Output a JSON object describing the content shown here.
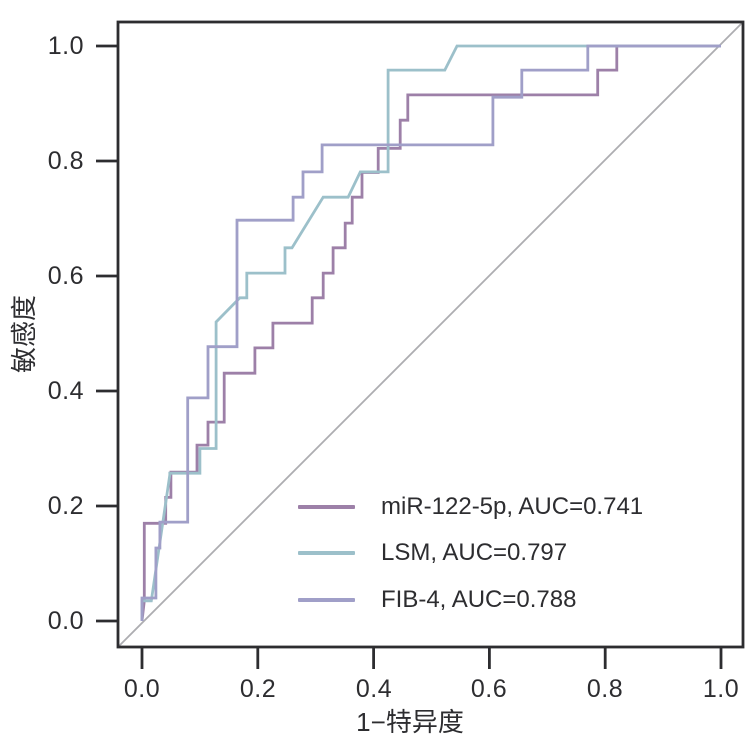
{
  "axes": {
    "x_label": "1−特异度",
    "y_label": "敏感度",
    "x_ticks": [
      "0.0",
      "0.2",
      "0.4",
      "0.6",
      "0.8",
      "1.0"
    ],
    "y_ticks_top_down": [
      "1.0",
      "0.8",
      "0.6",
      "0.4",
      "0.2",
      "0.0"
    ]
  },
  "legend": {
    "items": [
      {
        "label": "miR-122-5p, AUC=0.741",
        "color": "#9d80a8"
      },
      {
        "label": "LSM, AUC=0.797",
        "color": "#9cc0ca"
      },
      {
        "label": "FIB-4, AUC=0.788",
        "color": "#a09fc8"
      }
    ]
  },
  "colors": {
    "axis": "#2d2d30",
    "reference_line": "#adadb1",
    "background": "#ffffff"
  },
  "chart_data": {
    "type": "line",
    "subtype": "roc-curve",
    "title": "",
    "xlabel": "1−特异度",
    "ylabel": "敏感度",
    "xlim": [
      0,
      1
    ],
    "ylim": [
      0,
      1
    ],
    "x_tick_values": [
      0,
      0.2,
      0.4,
      0.6,
      0.8,
      1.0
    ],
    "y_tick_values": [
      0,
      0.2,
      0.4,
      0.6,
      0.8,
      1.0
    ],
    "grid": false,
    "legend_position": "lower-right-inside",
    "reference_diagonal": true,
    "series": [
      {
        "name": "miR-122-5p",
        "auc": 0.741,
        "color": "#9d80a8",
        "points": [
          [
            0,
            0
          ],
          [
            0.004,
            0.035
          ],
          [
            0.004,
            0.17
          ],
          [
            0.041,
            0.17
          ],
          [
            0.041,
            0.215
          ],
          [
            0.05,
            0.215
          ],
          [
            0.05,
            0.259
          ],
          [
            0.095,
            0.259
          ],
          [
            0.095,
            0.306
          ],
          [
            0.114,
            0.306
          ],
          [
            0.114,
            0.346
          ],
          [
            0.142,
            0.346
          ],
          [
            0.142,
            0.431
          ],
          [
            0.195,
            0.431
          ],
          [
            0.195,
            0.475
          ],
          [
            0.226,
            0.475
          ],
          [
            0.226,
            0.518
          ],
          [
            0.294,
            0.518
          ],
          [
            0.294,
            0.562
          ],
          [
            0.313,
            0.562
          ],
          [
            0.313,
            0.605
          ],
          [
            0.33,
            0.605
          ],
          [
            0.33,
            0.649
          ],
          [
            0.351,
            0.649
          ],
          [
            0.351,
            0.692
          ],
          [
            0.363,
            0.692
          ],
          [
            0.363,
            0.737
          ],
          [
            0.38,
            0.737
          ],
          [
            0.38,
            0.78
          ],
          [
            0.408,
            0.78
          ],
          [
            0.408,
            0.822
          ],
          [
            0.446,
            0.822
          ],
          [
            0.446,
            0.871
          ],
          [
            0.459,
            0.871
          ],
          [
            0.459,
            0.915
          ],
          [
            0.787,
            0.915
          ],
          [
            0.787,
            0.958
          ],
          [
            0.82,
            0.958
          ],
          [
            0.82,
            1.0
          ],
          [
            1.0,
            1.0
          ]
        ]
      },
      {
        "name": "LSM",
        "auc": 0.797,
        "color": "#9cc0ca",
        "points": [
          [
            0,
            0
          ],
          [
            0,
            0.035
          ],
          [
            0.016,
            0.035
          ],
          [
            0.048,
            0.254
          ],
          [
            0.048,
            0.257
          ],
          [
            0.1,
            0.257
          ],
          [
            0.1,
            0.3
          ],
          [
            0.128,
            0.3
          ],
          [
            0.128,
            0.52
          ],
          [
            0.169,
            0.562
          ],
          [
            0.181,
            0.562
          ],
          [
            0.181,
            0.605
          ],
          [
            0.247,
            0.605
          ],
          [
            0.247,
            0.649
          ],
          [
            0.259,
            0.649
          ],
          [
            0.313,
            0.737
          ],
          [
            0.356,
            0.737
          ],
          [
            0.377,
            0.781
          ],
          [
            0.425,
            0.781
          ],
          [
            0.425,
            0.958
          ],
          [
            0.523,
            0.958
          ],
          [
            0.544,
            1.0
          ],
          [
            1.0,
            1.0
          ]
        ]
      },
      {
        "name": "FIB-4",
        "auc": 0.788,
        "color": "#a09fc8",
        "points": [
          [
            0,
            0
          ],
          [
            0,
            0.04
          ],
          [
            0.024,
            0.04
          ],
          [
            0.024,
            0.127
          ],
          [
            0.031,
            0.127
          ],
          [
            0.031,
            0.172
          ],
          [
            0.079,
            0.172
          ],
          [
            0.079,
            0.388
          ],
          [
            0.114,
            0.388
          ],
          [
            0.114,
            0.477
          ],
          [
            0.164,
            0.477
          ],
          [
            0.164,
            0.697
          ],
          [
            0.261,
            0.697
          ],
          [
            0.261,
            0.737
          ],
          [
            0.278,
            0.737
          ],
          [
            0.278,
            0.781
          ],
          [
            0.311,
            0.781
          ],
          [
            0.311,
            0.828
          ],
          [
            0.606,
            0.828
          ],
          [
            0.606,
            0.911
          ],
          [
            0.656,
            0.911
          ],
          [
            0.656,
            0.958
          ],
          [
            0.77,
            0.958
          ],
          [
            0.77,
            1.0
          ],
          [
            1.0,
            1.0
          ]
        ]
      }
    ]
  }
}
